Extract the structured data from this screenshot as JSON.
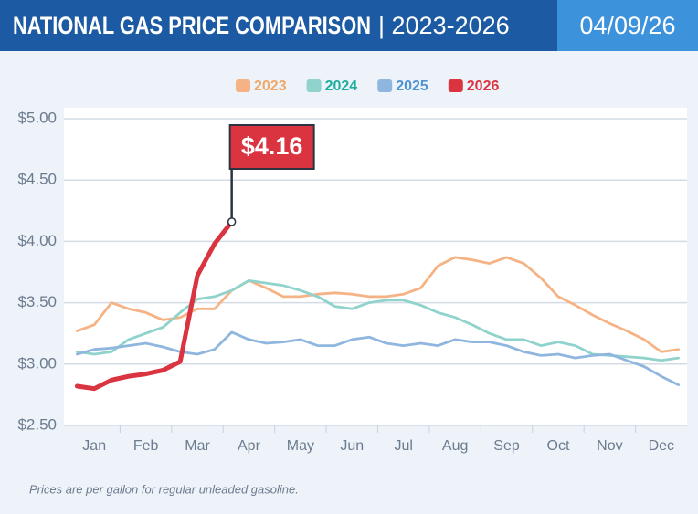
{
  "header": {
    "title": "NATIONAL GAS PRICE COMPARISON",
    "subtitle": "| 2023-2026",
    "date": "04/09/26"
  },
  "chart_data": {
    "type": "line",
    "categories": [
      null,
      "Jan",
      null,
      null,
      "Feb",
      null,
      null,
      "Mar",
      null,
      null,
      "Apr",
      null,
      null,
      "May",
      null,
      null,
      "Jun",
      null,
      null,
      "Jul",
      null,
      null,
      "Aug",
      null,
      null,
      "Sep",
      null,
      null,
      "Oct",
      null,
      null,
      "Nov",
      null,
      null,
      "Dec",
      null
    ],
    "series": [
      {
        "name": "2023",
        "color": "#f5b385",
        "values": [
          3.27,
          3.32,
          3.5,
          3.45,
          3.42,
          3.36,
          3.38,
          3.45,
          3.45,
          3.6,
          3.68,
          3.62,
          3.55,
          3.55,
          3.57,
          3.58,
          3.57,
          3.55,
          3.55,
          3.57,
          3.62,
          3.8,
          3.87,
          3.85,
          3.82,
          3.87,
          3.82,
          3.7,
          3.55,
          3.48,
          3.4,
          3.33,
          3.27,
          3.2,
          3.1,
          3.12
        ]
      },
      {
        "name": "2024",
        "color": "#8fd3cc",
        "values": [
          3.1,
          3.08,
          3.1,
          3.2,
          3.25,
          3.3,
          3.42,
          3.53,
          3.55,
          3.6,
          3.68,
          3.66,
          3.64,
          3.6,
          3.55,
          3.47,
          3.45,
          3.5,
          3.52,
          3.52,
          3.48,
          3.42,
          3.38,
          3.32,
          3.25,
          3.2,
          3.2,
          3.15,
          3.18,
          3.15,
          3.08,
          3.07,
          3.06,
          3.05,
          3.03,
          3.05
        ]
      },
      {
        "name": "2025",
        "color": "#8fb6df",
        "values": [
          3.08,
          3.12,
          3.13,
          3.15,
          3.17,
          3.14,
          3.1,
          3.08,
          3.12,
          3.26,
          3.2,
          3.17,
          3.18,
          3.2,
          3.15,
          3.15,
          3.2,
          3.22,
          3.17,
          3.15,
          3.17,
          3.15,
          3.2,
          3.18,
          3.18,
          3.15,
          3.1,
          3.07,
          3.08,
          3.05,
          3.07,
          3.08,
          3.03,
          2.98,
          2.9,
          2.83
        ]
      },
      {
        "name": "2026",
        "color": "#d9343f",
        "values": [
          2.82,
          2.8,
          2.87,
          2.9,
          2.92,
          2.95,
          3.02,
          3.72,
          3.98,
          4.16,
          null,
          null,
          null,
          null,
          null,
          null,
          null,
          null,
          null,
          null,
          null,
          null,
          null,
          null,
          null,
          null,
          null,
          null,
          null,
          null,
          null,
          null,
          null,
          null,
          null,
          null
        ]
      }
    ],
    "legend_text_colors": [
      "#f0a868",
      "#1fae9e",
      "#4f93d2",
      "#d9343f"
    ],
    "annotation": "$4.16",
    "ylim": [
      2.5,
      5
    ],
    "yticks": [
      {
        "value": 2.5,
        "label": "$2.50"
      },
      {
        "value": 3,
        "label": "$3.00"
      },
      {
        "value": 3.5,
        "label": "$3.50"
      },
      {
        "value": 4,
        "label": "$4.00"
      },
      {
        "value": 4.5,
        "label": "$4.50"
      },
      {
        "value": 5,
        "label": "$5.00"
      }
    ],
    "grid": true,
    "footnote": "Prices are per gallon for regular unleaded gasoline."
  }
}
